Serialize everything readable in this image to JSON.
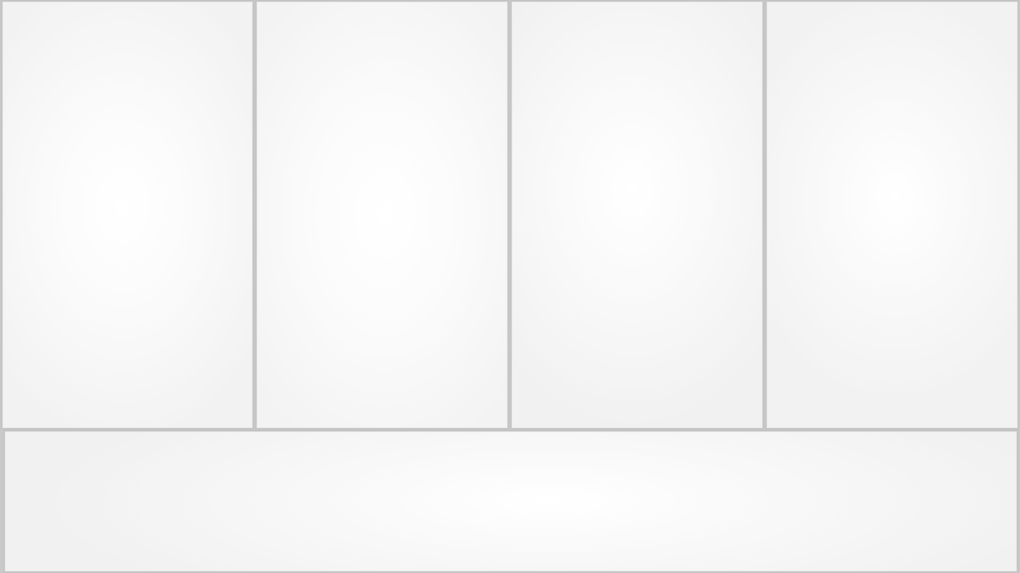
{
  "window": {
    "title": ""
  },
  "layout": {
    "top_row_panel_count": 4,
    "bottom_row_panel_count": 1
  },
  "colors": {
    "page_background": "#c9c9c9",
    "panel_border": "#c4c4c4",
    "panel_center": "#ffffff",
    "panel_edge": "#f2f2f2"
  },
  "panels": [
    {
      "label": ""
    },
    {
      "label": ""
    },
    {
      "label": ""
    },
    {
      "label": ""
    },
    {
      "label": ""
    }
  ]
}
